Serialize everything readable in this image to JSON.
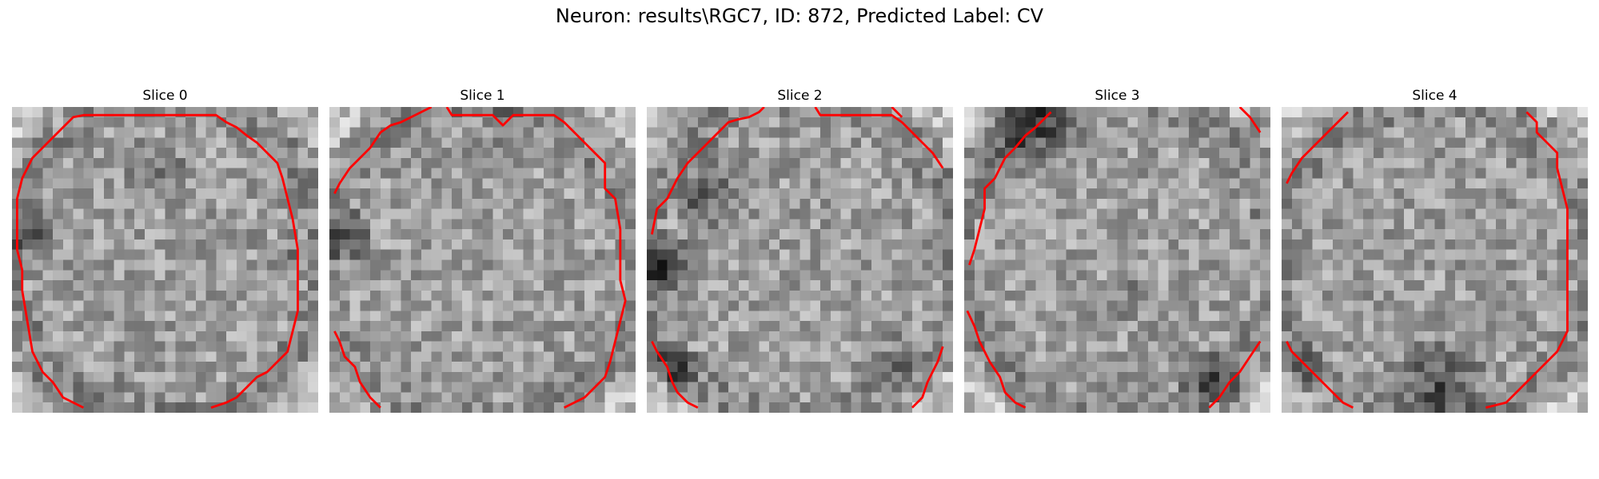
{
  "figure": {
    "title": "Neuron: results\\RGC7, ID: 872, Predicted Label: CV"
  },
  "panels": [
    {
      "title": "Slice 0"
    },
    {
      "title": "Slice 1"
    },
    {
      "title": "Slice 2"
    },
    {
      "title": "Slice 3"
    },
    {
      "title": "Slice 4"
    }
  ],
  "colors": {
    "contour": "#ff0000",
    "background": "#ffffff"
  }
}
